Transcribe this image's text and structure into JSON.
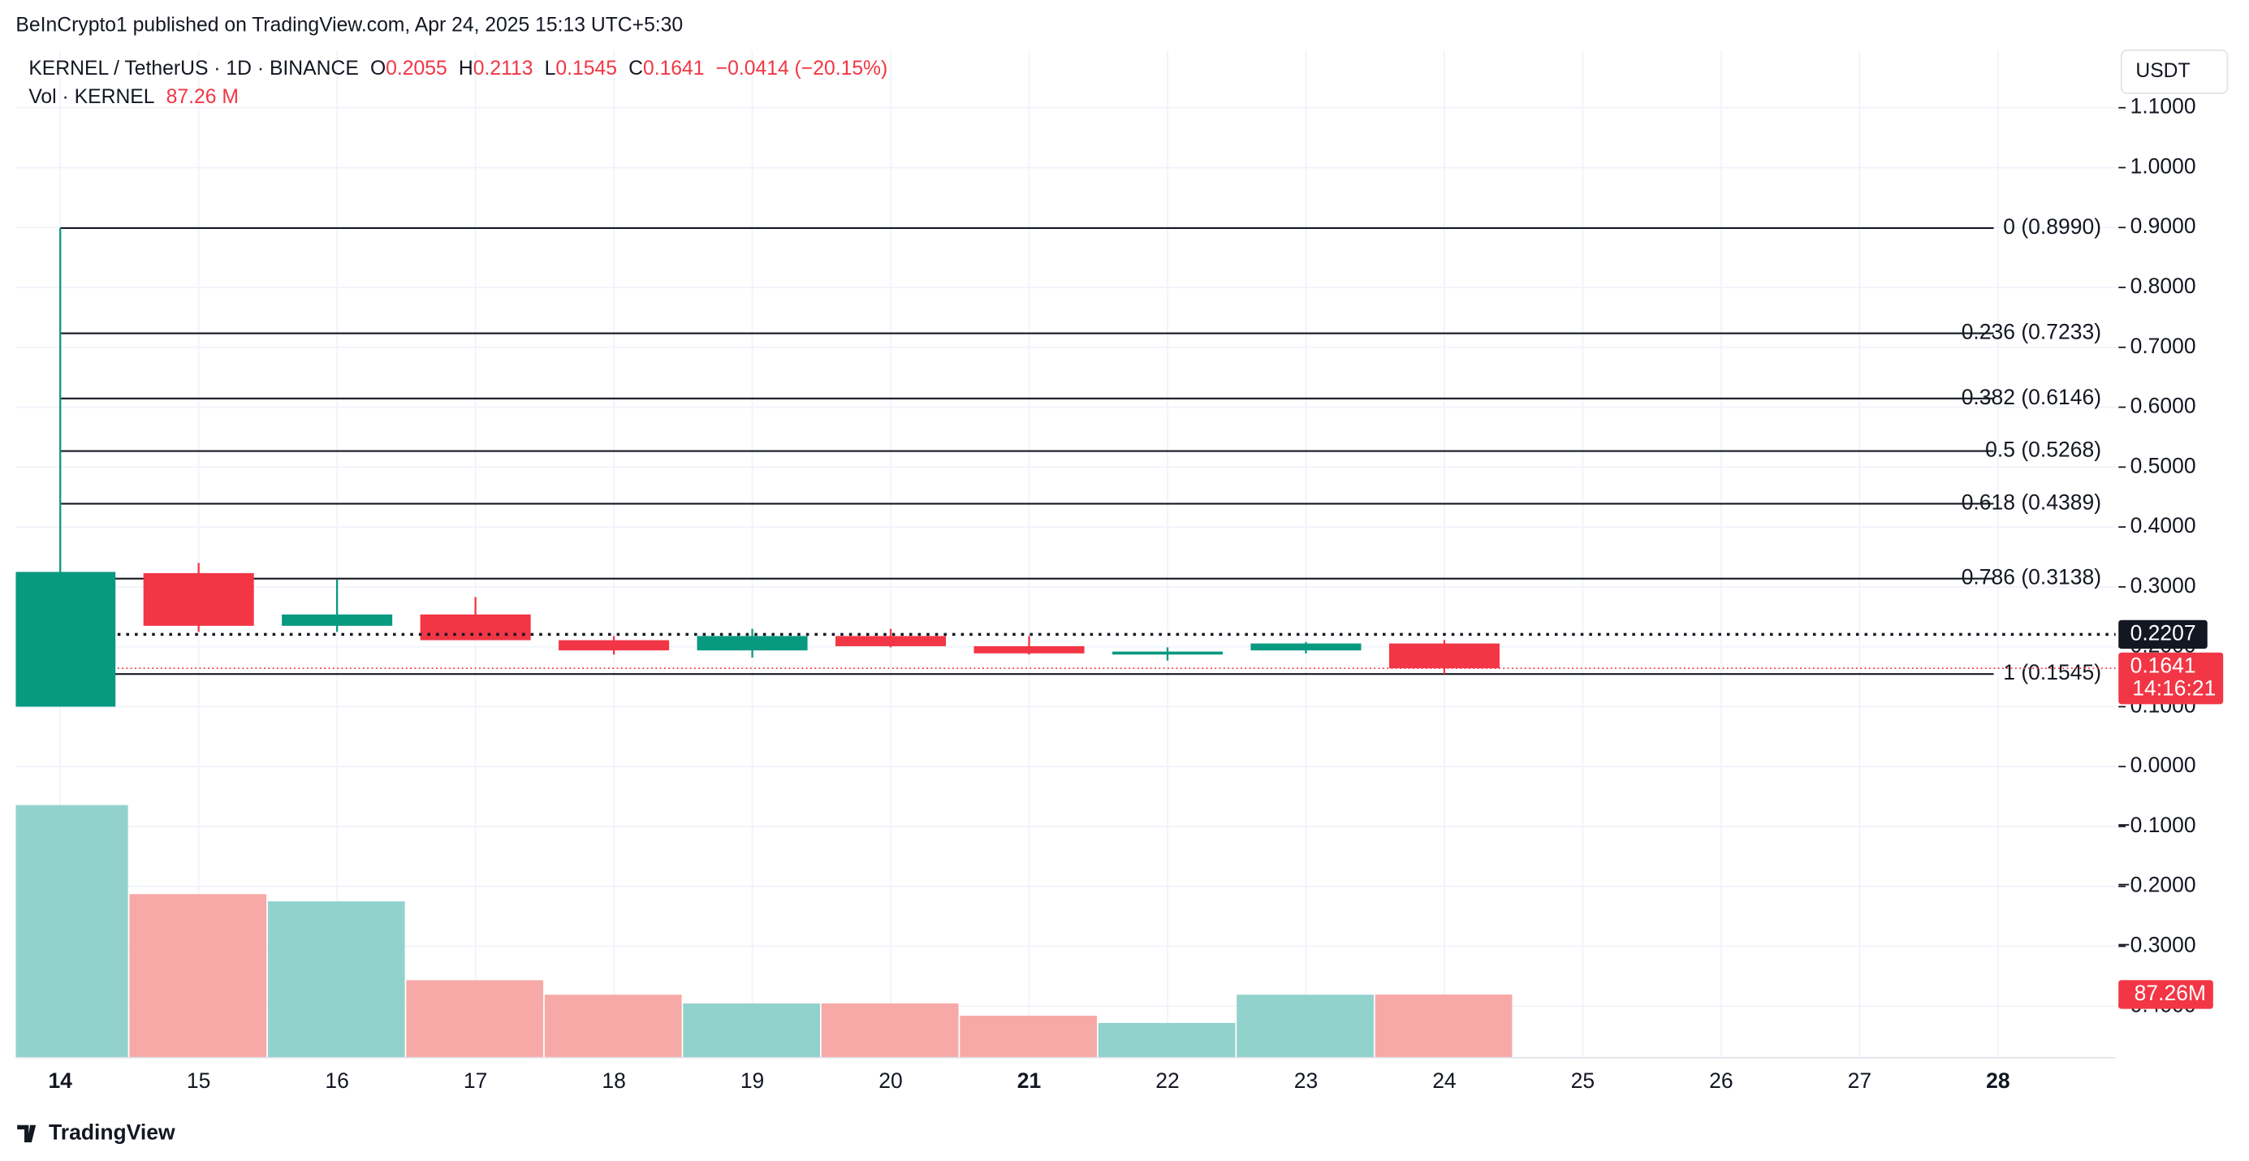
{
  "header": {
    "publisher": "BeInCrypto1 published on TradingView.com, Apr 24, 2025 15:13 UTC+5:30",
    "logo": "TradingView"
  },
  "chart_data": {
    "type": "candlestick",
    "title": "KERNEL / TetherUS · 1D · BINANCE",
    "legend": {
      "o_label": "O",
      "h_label": "H",
      "l_label": "L",
      "c_label": "C",
      "change": "−0.0414 (−20.15%)",
      "volume_title": "Vol · KERNEL",
      "volume_text": "87.26 M"
    },
    "currency": "USDT",
    "categories": [
      "14",
      "15",
      "16",
      "17",
      "18",
      "19",
      "20",
      "21",
      "22",
      "23",
      "24",
      "25",
      "26",
      "27",
      "28"
    ],
    "open": [
      0.1,
      0.323,
      0.235,
      0.254,
      0.211,
      0.194,
      0.218,
      0.201,
      0.187,
      0.194,
      0.2055,
      null,
      null,
      null,
      null
    ],
    "high": [
      0.899,
      0.34,
      0.312,
      0.283,
      0.218,
      0.23,
      0.23,
      0.218,
      0.199,
      0.208,
      0.2113,
      null,
      null,
      null,
      null
    ],
    "low": [
      0.1,
      0.225,
      0.225,
      0.211,
      0.187,
      0.182,
      0.199,
      0.187,
      0.177,
      0.189,
      0.1545,
      null,
      null,
      null,
      null
    ],
    "close": [
      0.325,
      0.235,
      0.254,
      0.211,
      0.194,
      0.218,
      0.201,
      0.189,
      0.192,
      0.2055,
      0.1641,
      null,
      null,
      null,
      null
    ],
    "volume": [
      349,
      226,
      216,
      107,
      87,
      75,
      75,
      58,
      48,
      87,
      87.26,
      null,
      null,
      null,
      null
    ],
    "up_color": "#089981",
    "down_color": "#f23645",
    "volume_up_color": "#92d2cc",
    "volume_down_color": "#f7a9a7",
    "ylim": [
      -0.486,
      1.196
    ],
    "yticks": [
      {
        "value": 1.1,
        "label": "1.1000"
      },
      {
        "value": 1.0,
        "label": "1.0000"
      },
      {
        "value": 0.9,
        "label": "0.9000"
      },
      {
        "value": 0.8,
        "label": "0.8000"
      },
      {
        "value": 0.7,
        "label": "0.7000"
      },
      {
        "value": 0.6,
        "label": "0.6000"
      },
      {
        "value": 0.5,
        "label": "0.5000"
      },
      {
        "value": 0.4,
        "label": "0.4000"
      },
      {
        "value": 0.3,
        "label": "0.3000"
      },
      {
        "value": 0.2,
        "label": "0.2000"
      },
      {
        "value": 0.1,
        "label": "0.1000"
      },
      {
        "value": 0,
        "label": "0.0000"
      },
      {
        "value": -0.1,
        "label": "−0.1000"
      },
      {
        "value": -0.2,
        "label": "−0.2000"
      },
      {
        "value": -0.3,
        "label": "−0.3000"
      },
      {
        "value": -0.4,
        "label": "−0.4000"
      }
    ],
    "fib_levels": [
      {
        "value": 0.899,
        "label": "0 (0.8990)"
      },
      {
        "value": 0.7233,
        "label": "0.236 (0.7233)"
      },
      {
        "value": 0.6146,
        "label": "0.382 (0.6146)"
      },
      {
        "value": 0.5268,
        "label": "0.5 (0.5268)"
      },
      {
        "value": 0.4389,
        "label": "0.618 (0.4389)"
      },
      {
        "value": 0.3138,
        "label": "0.786 (0.3138)"
      },
      {
        "value": 0.1545,
        "label": "1 (0.1545)"
      }
    ],
    "price_line": 0.2207,
    "countdown": "14:16:21",
    "volume_label": "87.26M",
    "grid": true
  }
}
